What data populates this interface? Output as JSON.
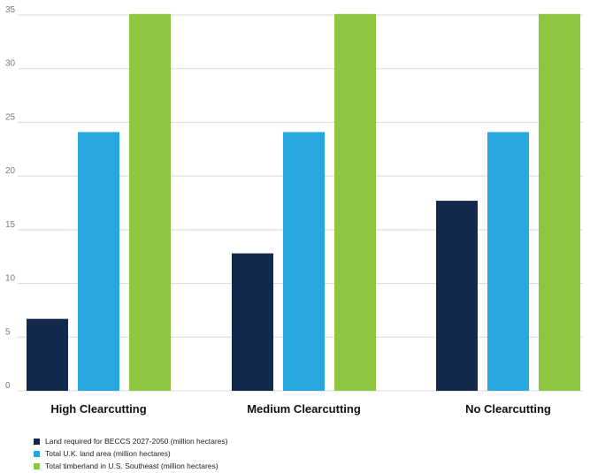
{
  "chart_data": {
    "type": "bar",
    "title": "",
    "xlabel": "",
    "ylabel": "",
    "categories": [
      "High Clearcutting",
      "Medium Clearcutting",
      "No Clearcutting"
    ],
    "series": [
      {
        "name": "Land required for BECCS 2027-2050 (million hectares)",
        "color": "#13294b",
        "values": [
          6.7,
          12.8,
          17.7
        ]
      },
      {
        "name": "Total U.K. land area (million hectares)",
        "color": "#29a8e0",
        "values": [
          24.1,
          24.1,
          24.1
        ]
      },
      {
        "name": "Total timberland in U.S. Southeast (million hectares)",
        "color": "#8dc63f",
        "values": [
          35.1,
          35.1,
          35.1
        ]
      }
    ],
    "ylim": [
      0,
      35
    ],
    "yticks": [
      0,
      5,
      10,
      15,
      20,
      25,
      30,
      35
    ],
    "grid": true,
    "legend_position": "bottom-left"
  }
}
